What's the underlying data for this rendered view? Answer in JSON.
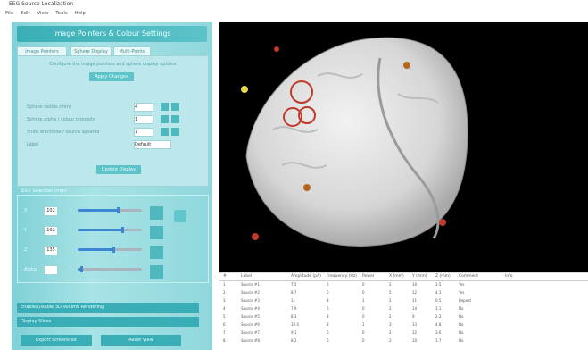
{
  "window": {
    "title": "EEG Source Localization"
  },
  "menu": [
    "File",
    "Edit",
    "View",
    "Tools",
    "Help"
  ],
  "left_panel": {
    "banner": "Image Pointers & Colour Settings",
    "tabs": [
      "Image Pointers",
      "Sphere Display",
      "Multi-Points"
    ],
    "note": "Configure the image pointers and sphere display options",
    "apply_button": "Apply Changes",
    "params": [
      {
        "label": "Sphere radius (mm)",
        "value": "4"
      },
      {
        "label": "Sphere alpha / colour intensity",
        "value": "1"
      },
      {
        "label": "Show electrode / source spheres",
        "value": "1"
      },
      {
        "label": "Label",
        "value": "Default"
      }
    ],
    "update_button": "Update Display",
    "group_title": "Slice Selection (mm)",
    "sliders": [
      {
        "label": "X",
        "value": "102",
        "level": 0.62
      },
      {
        "label": "Y",
        "value": "102",
        "level": 0.7
      },
      {
        "label": "Z",
        "value": "135",
        "level": 0.55
      },
      {
        "label": "Alpha",
        "value": "",
        "level": 0.05
      }
    ],
    "wide_buttons": [
      "Enable/Disable 3D Volume Rendering",
      "Display Slices"
    ],
    "bottom_buttons": [
      "Export Screenshot",
      "Reset View"
    ]
  },
  "table": {
    "headers": [
      "#",
      "Label",
      "Amplitude (pA)",
      "Frequency (Hz)",
      "Power",
      "X (mm)",
      "Y (mm)",
      "Z (mm)",
      "Comment",
      "Info"
    ],
    "rows": [
      [
        "1",
        "Source #1",
        "7.5",
        "6",
        "0",
        "2",
        "10",
        "3.5",
        "Yes",
        ""
      ],
      [
        "2",
        "Source #2",
        "8.7",
        "6",
        "0",
        "5",
        "12",
        "4.1",
        "Yes",
        ""
      ],
      [
        "3",
        "Source #3",
        "11",
        "8",
        "1",
        "2",
        "11",
        "0.5",
        "Repeat",
        ""
      ],
      [
        "4",
        "Source #4",
        "7.9",
        "6",
        "0",
        "2",
        "14",
        "3.1",
        "No",
        ""
      ],
      [
        "5",
        "Source #5",
        "8.3",
        "8",
        "0",
        "2",
        "9",
        "2.2",
        "No",
        ""
      ],
      [
        "6",
        "Source #6",
        "10.4",
        "8",
        "1",
        "3",
        "13",
        "4.8",
        "No",
        ""
      ],
      [
        "7",
        "Source #7",
        "9.1",
        "6",
        "0",
        "2",
        "12",
        "3.6",
        "No",
        ""
      ],
      [
        "8",
        "Source #8",
        "8.2",
        "6",
        "0",
        "2",
        "10",
        "1.7",
        "No",
        ""
      ]
    ]
  }
}
